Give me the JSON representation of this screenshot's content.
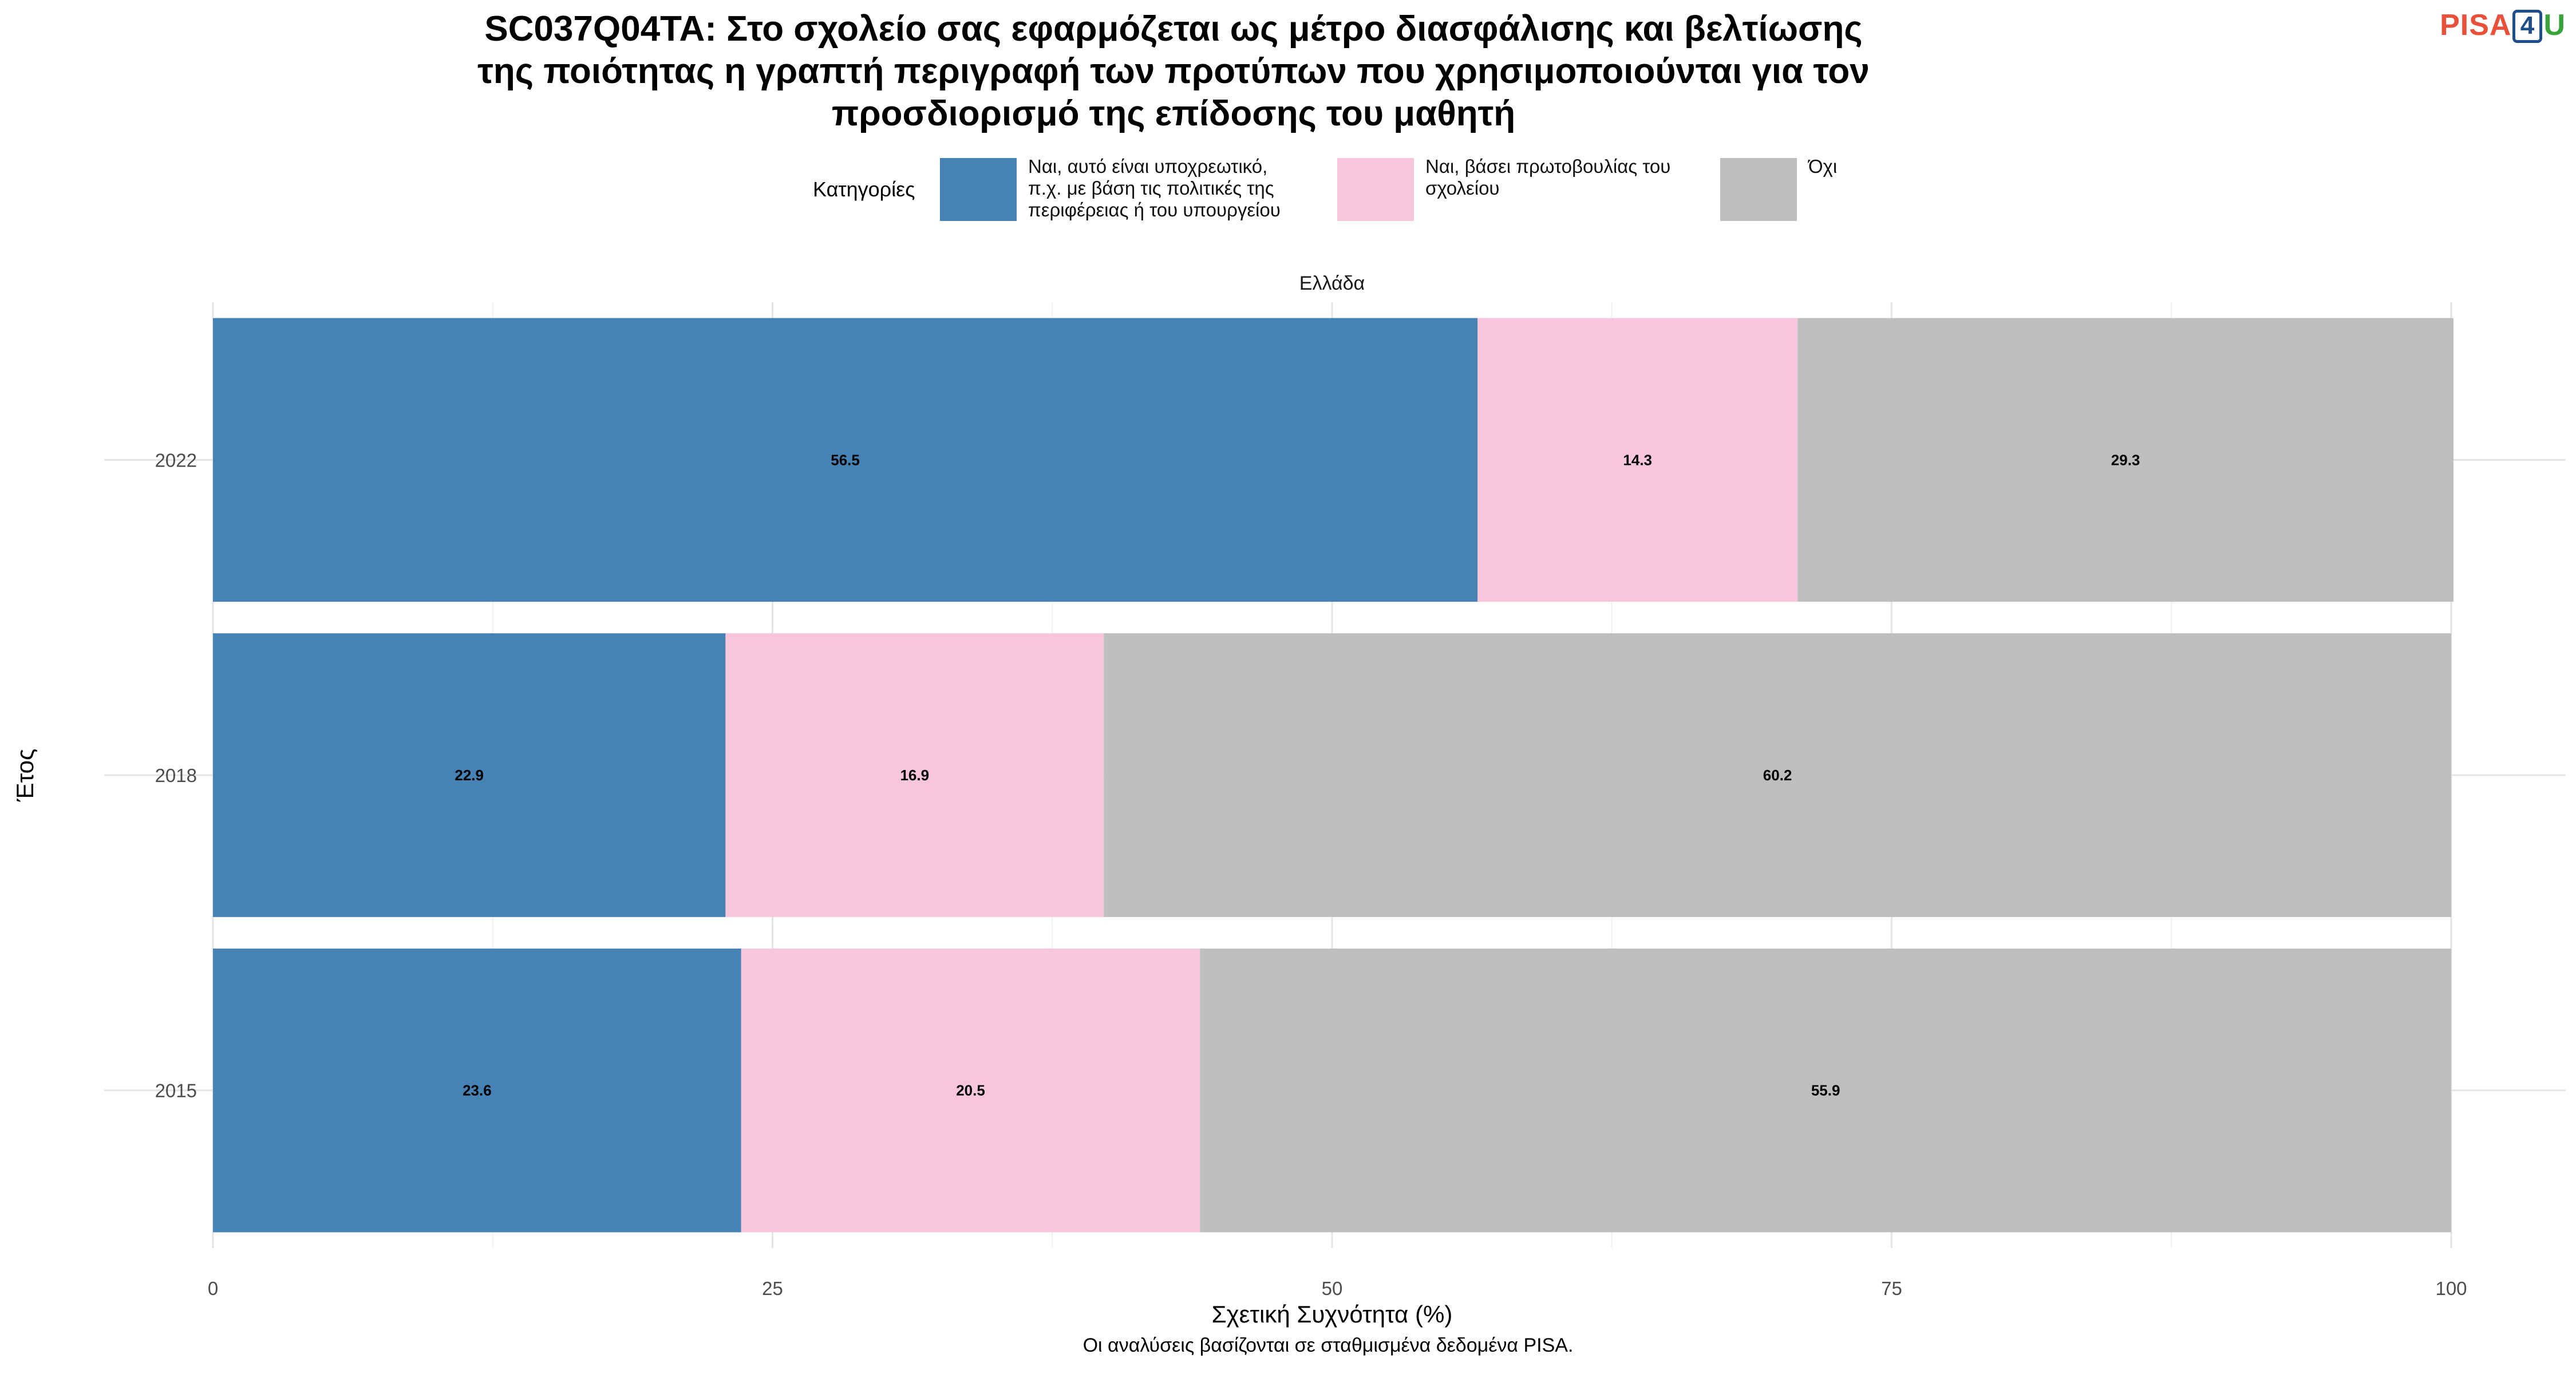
{
  "title": "SC037Q04TA: Στο σχολείο σας εφαρμόζεται ως μέτρο διασφάλισης και βελτίωσης\nτης ποιότητας η γραπτή περιγραφή των προτύπων που χρησιμοποιούνται για τον\nπροσδιορισμό της επίδοσης του μαθητή",
  "logo": {
    "part1": "PISA",
    "part2": "4",
    "part3": "U"
  },
  "legend": {
    "title": "Κατηγορίες",
    "items": [
      {
        "label": "Ναι, αυτό είναι υποχρεωτικό,\nπ.χ. με βάση τις πολιτικές της\nπεριφέρειας ή του υπουργείου",
        "color": "#4682b4"
      },
      {
        "label": "Ναι, βάσει πρωτοβουλίας του\nσχολείου",
        "color": "#f7c6dc"
      },
      {
        "label": "Όχι",
        "color": "#bebebe"
      }
    ]
  },
  "caption": "Οι αναλύσεις βασίζονται σε σταθμισμένα δεδομένα PISA.",
  "chart_data": {
    "type": "bar",
    "orientation": "horizontal",
    "stacked": true,
    "facet": "Ελλάδα",
    "categories": [
      "2022",
      "2018",
      "2015"
    ],
    "series": [
      {
        "name": "Ναι, αυτό είναι υποχρεωτικό, π.χ. με βάση τις πολιτικές της περιφέρειας ή του υπουργείου",
        "color": "#4682b4",
        "values": [
          56.5,
          22.9,
          23.6
        ]
      },
      {
        "name": "Ναι, βάσει πρωτοβουλίας του σχολείου",
        "color": "#f7c6dc",
        "values": [
          14.3,
          16.9,
          20.5
        ]
      },
      {
        "name": "Όχι",
        "color": "#bebebe",
        "values": [
          29.3,
          60.2,
          55.9
        ]
      }
    ],
    "xlabel": "Σχετική Συχνότητα (%)",
    "ylabel": "Έτος",
    "xlim": [
      0,
      100
    ],
    "xticks": [
      0,
      25,
      50,
      75,
      100
    ],
    "grid": true,
    "legend_position": "top"
  }
}
